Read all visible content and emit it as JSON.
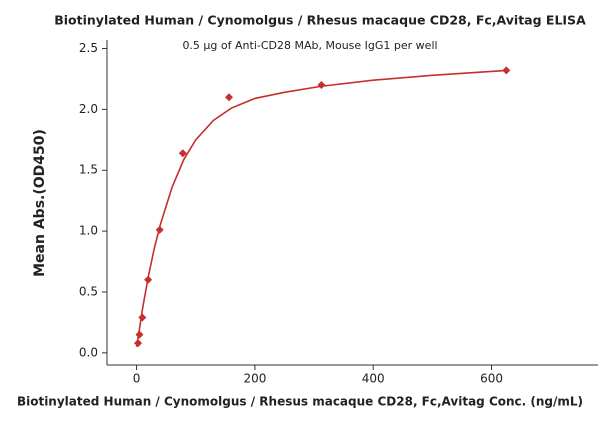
{
  "chart_data": {
    "type": "scatter",
    "title": "Biotinylated Human / Cynomolgus / Rhesus macaque CD28, Fc,Avitag ELISA",
    "subtitle": "0.5 µg of Anti-CD28 MAb, Mouse IgG1 per well",
    "x_label": "Biotinylated Human / Cynomolgus / Rhesus macaque CD28, Fc,Avitag Conc. (ng/mL)",
    "y_label": "Mean Abs.(OD450)",
    "color": "#c62f2b",
    "x": [
      2.44,
      4.88,
      9.77,
      19.53,
      39.06,
      78.13,
      156.25,
      312.5,
      625
    ],
    "values": [
      0.08,
      0.15,
      0.29,
      0.6,
      1.01,
      1.64,
      2.1,
      2.2,
      2.32
    ],
    "fit": {
      "x": [
        0,
        5,
        10,
        20,
        30,
        40,
        60,
        80,
        100,
        130,
        160,
        200,
        250,
        312.5,
        400,
        500,
        625
      ],
      "values": [
        0.05,
        0.2,
        0.36,
        0.63,
        0.86,
        1.05,
        1.36,
        1.59,
        1.75,
        1.91,
        2.01,
        2.09,
        2.14,
        2.19,
        2.24,
        2.28,
        2.32
      ]
    },
    "xlim": [
      -50,
      780
    ],
    "ylim": [
      -0.1,
      2.57
    ],
    "xticks": [
      0,
      200,
      400,
      600
    ],
    "yticks": [
      {
        "value": 0,
        "label": "0.0"
      },
      0.5,
      {
        "value": 1,
        "label": "1.0"
      },
      1.5,
      {
        "value": 2,
        "label": "2.0"
      },
      2.5
    ]
  }
}
